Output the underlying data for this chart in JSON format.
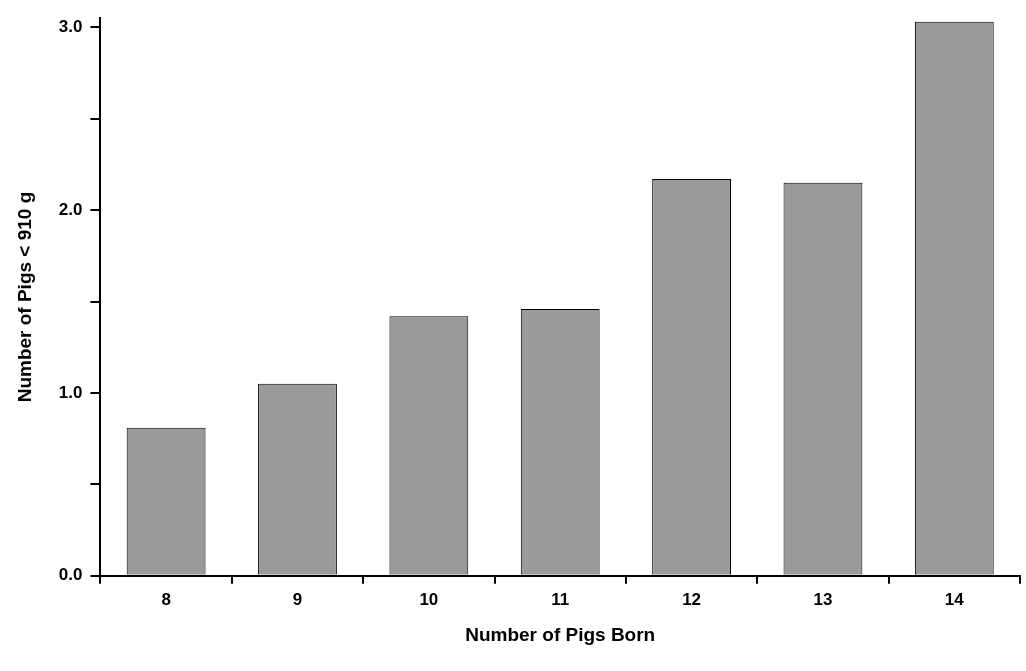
{
  "chart_data": {
    "type": "bar",
    "xlabel": "Number of Pigs Born",
    "ylabel": "Number of Pigs < 910 g",
    "categories": [
      "8",
      "9",
      "10",
      "11",
      "12",
      "13",
      "14"
    ],
    "values": [
      0.81,
      1.05,
      1.42,
      1.46,
      2.17,
      2.15,
      3.03
    ],
    "color": "#9a9a9a",
    "ylim": [
      0,
      3.05
    ],
    "yticks": [
      {
        "value": 0,
        "label": "0.0"
      },
      {
        "value": 0.5,
        "label": null
      },
      {
        "value": 1,
        "label": "1.0"
      },
      {
        "value": 1.5,
        "label": null
      },
      {
        "value": 2,
        "label": "2.0"
      },
      {
        "value": 2.5,
        "label": null
      },
      {
        "value": 3,
        "label": "3.0"
      }
    ]
  }
}
